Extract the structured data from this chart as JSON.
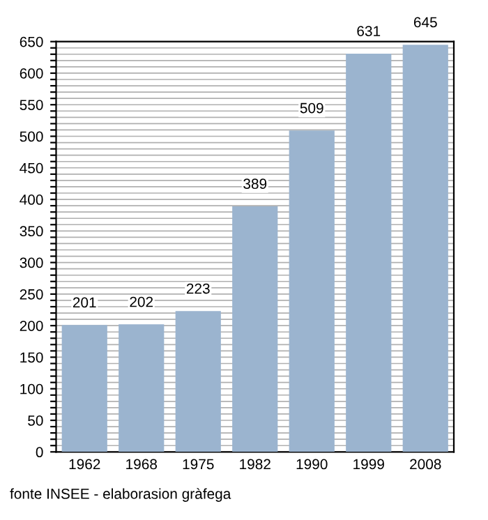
{
  "chart_data": {
    "type": "bar",
    "categories": [
      "1962",
      "1968",
      "1975",
      "1982",
      "1990",
      "1999",
      "2008"
    ],
    "values": [
      201,
      202,
      223,
      389,
      509,
      631,
      645
    ],
    "color": "#9bb4cf",
    "data_labels": true,
    "ylim": [
      0,
      650
    ],
    "yticks": [
      0,
      {
        "value": 10,
        "label": null
      },
      {
        "value": 20,
        "label": null
      },
      {
        "value": 30,
        "label": null
      },
      {
        "value": 40,
        "label": null
      },
      50,
      {
        "value": 60,
        "label": null
      },
      {
        "value": 70,
        "label": null
      },
      {
        "value": 80,
        "label": null
      },
      {
        "value": 90,
        "label": null
      },
      100,
      {
        "value": 110,
        "label": null
      },
      {
        "value": 120,
        "label": null
      },
      {
        "value": 130,
        "label": null
      },
      {
        "value": 140,
        "label": null
      },
      150,
      {
        "value": 160,
        "label": null
      },
      {
        "value": 170,
        "label": null
      },
      {
        "value": 180,
        "label": null
      },
      {
        "value": 190,
        "label": null
      },
      200,
      {
        "value": 210,
        "label": null
      },
      {
        "value": 220,
        "label": null
      },
      {
        "value": 230,
        "label": null
      },
      {
        "value": 240,
        "label": null
      },
      250,
      {
        "value": 260,
        "label": null
      },
      {
        "value": 270,
        "label": null
      },
      {
        "value": 280,
        "label": null
      },
      {
        "value": 290,
        "label": null
      },
      300,
      {
        "value": 310,
        "label": null
      },
      {
        "value": 320,
        "label": null
      },
      {
        "value": 330,
        "label": null
      },
      {
        "value": 340,
        "label": null
      },
      350,
      {
        "value": 360,
        "label": null
      },
      {
        "value": 370,
        "label": null
      },
      {
        "value": 380,
        "label": null
      },
      {
        "value": 390,
        "label": null
      },
      400,
      {
        "value": 410,
        "label": null
      },
      {
        "value": 420,
        "label": null
      },
      {
        "value": 430,
        "label": null
      },
      {
        "value": 440,
        "label": null
      },
      450,
      {
        "value": 460,
        "label": null
      },
      {
        "value": 470,
        "label": null
      },
      {
        "value": 480,
        "label": null
      },
      {
        "value": 490,
        "label": null
      },
      500,
      {
        "value": 510,
        "label": null
      },
      {
        "value": 520,
        "label": null
      },
      {
        "value": 530,
        "label": null
      },
      {
        "value": 540,
        "label": null
      },
      550,
      {
        "value": 560,
        "label": null
      },
      {
        "value": 570,
        "label": null
      },
      {
        "value": 580,
        "label": null
      },
      {
        "value": 590,
        "label": null
      },
      600,
      {
        "value": 610,
        "label": null
      },
      {
        "value": 620,
        "label": null
      },
      {
        "value": 630,
        "label": null
      },
      {
        "value": 640,
        "label": null
      },
      650
    ],
    "grid": "y",
    "annotations": [
      "fonte INSEE - elaborasion gràfega"
    ]
  }
}
